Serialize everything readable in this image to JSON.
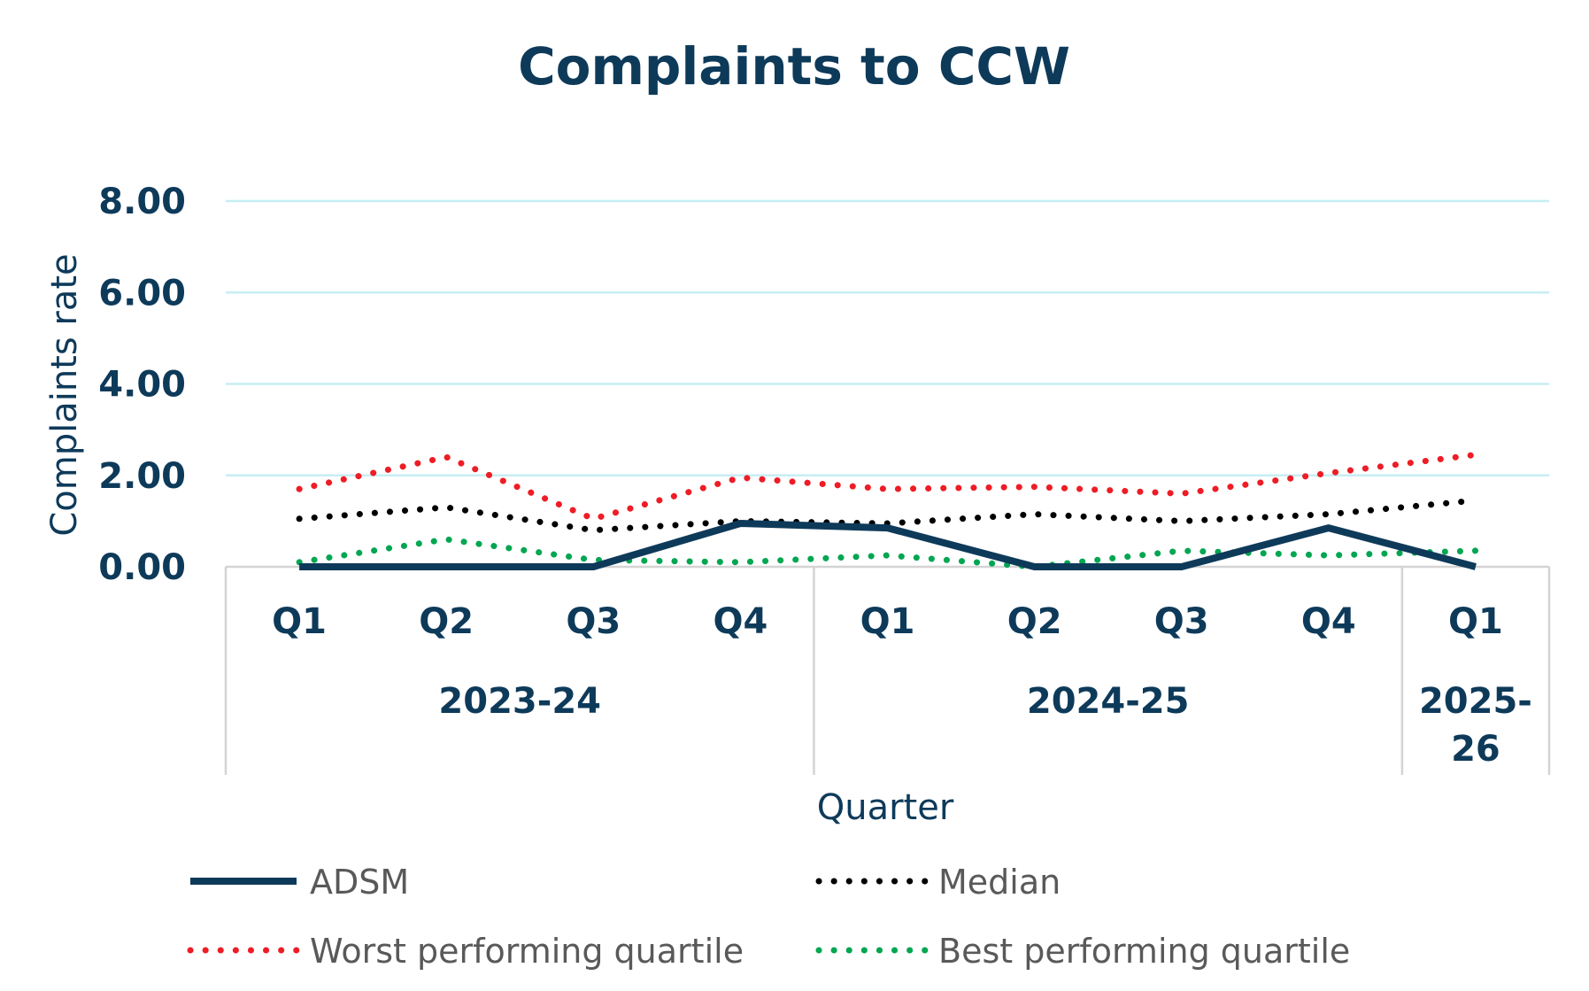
{
  "colors": {
    "title": "#0e3a5a",
    "axis_text": "#0e3a5a",
    "gridline": "#c6eef3",
    "frame": "#d4d4d4",
    "legend_text": "#595959"
  },
  "chart_data": {
    "type": "line",
    "title": "Complaints to CCW",
    "xlabel": "Quarter",
    "ylabel": "Complaints rate",
    "ylim": [
      0,
      8
    ],
    "yticks": [
      "0.00",
      "2.00",
      "4.00",
      "6.00",
      "8.00"
    ],
    "grid": true,
    "legend_position": "bottom",
    "categories": [
      "Q1",
      "Q2",
      "Q3",
      "Q4",
      "Q1",
      "Q2",
      "Q3",
      "Q4",
      "Q1"
    ],
    "groups": [
      {
        "label_lines": [
          "2023-24"
        ],
        "span": 4
      },
      {
        "label_lines": [
          "2024-25"
        ],
        "span": 4
      },
      {
        "label_lines": [
          "2025-",
          "26"
        ],
        "span": 1
      }
    ],
    "series": [
      {
        "name": "ADSM",
        "style": "solid",
        "color": "#0e3a5a",
        "values": [
          0.0,
          0.0,
          0.0,
          0.95,
          0.85,
          0.0,
          0.0,
          0.85,
          0.0
        ]
      },
      {
        "name": "Median",
        "style": "dotted",
        "color": "#000000",
        "values": [
          1.05,
          1.3,
          0.8,
          1.0,
          0.95,
          1.15,
          1.0,
          1.15,
          1.45
        ]
      },
      {
        "name": "Worst performing quartile",
        "style": "dotted",
        "color": "#ee1c25",
        "values": [
          1.7,
          2.4,
          1.05,
          1.95,
          1.7,
          1.75,
          1.6,
          2.05,
          2.45
        ]
      },
      {
        "name": "Best performing quartile",
        "style": "dotted",
        "color": "#00a651",
        "values": [
          0.1,
          0.6,
          0.15,
          0.1,
          0.25,
          0.0,
          0.35,
          0.25,
          0.35
        ]
      }
    ]
  }
}
